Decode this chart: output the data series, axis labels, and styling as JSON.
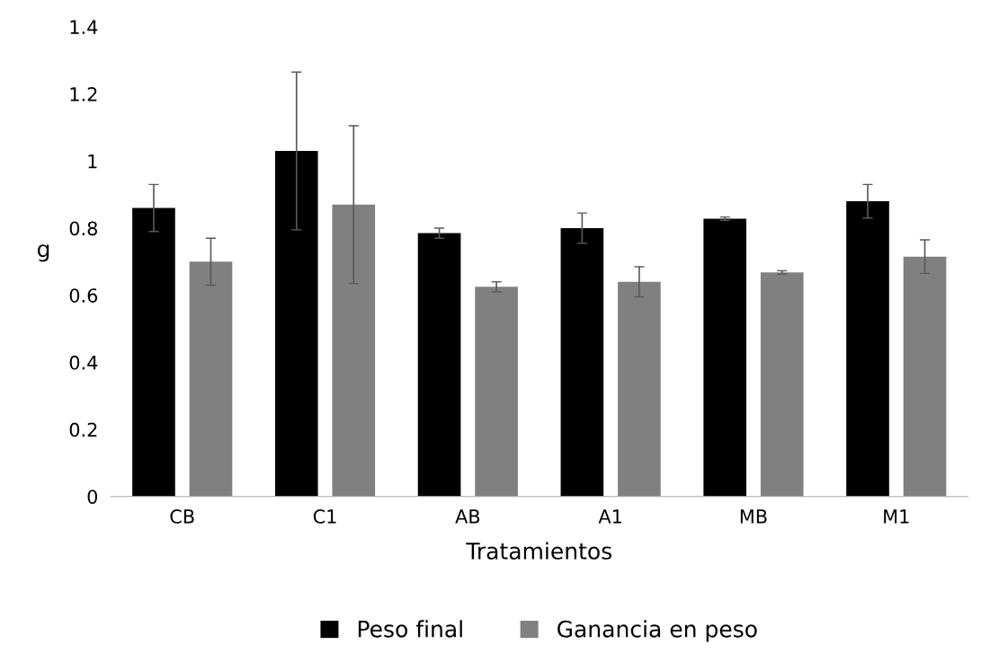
{
  "chart_data": {
    "type": "bar",
    "xlabel": "Tratamientos",
    "ylabel": "g",
    "categories": [
      "CB",
      "C1",
      "AB",
      "A1",
      "MB",
      "M1"
    ],
    "series": [
      {
        "name": "Peso final",
        "color": "#000000",
        "values": [
          0.86,
          1.03,
          0.785,
          0.8,
          0.828,
          0.88
        ],
        "errors": [
          0.07,
          0.235,
          0.015,
          0.045,
          0.005,
          0.05
        ]
      },
      {
        "name": "Ganancia en peso",
        "color": "#808080",
        "values": [
          0.7,
          0.87,
          0.625,
          0.64,
          0.668,
          0.715
        ],
        "errors": [
          0.07,
          0.235,
          0.015,
          0.045,
          0.005,
          0.05
        ]
      }
    ],
    "ylim": [
      0,
      1.4
    ],
    "yticks": [
      0,
      0.2,
      0.4,
      0.6,
      0.8,
      1,
      1.2,
      1.4
    ],
    "grid": false,
    "legend": "bottom"
  }
}
